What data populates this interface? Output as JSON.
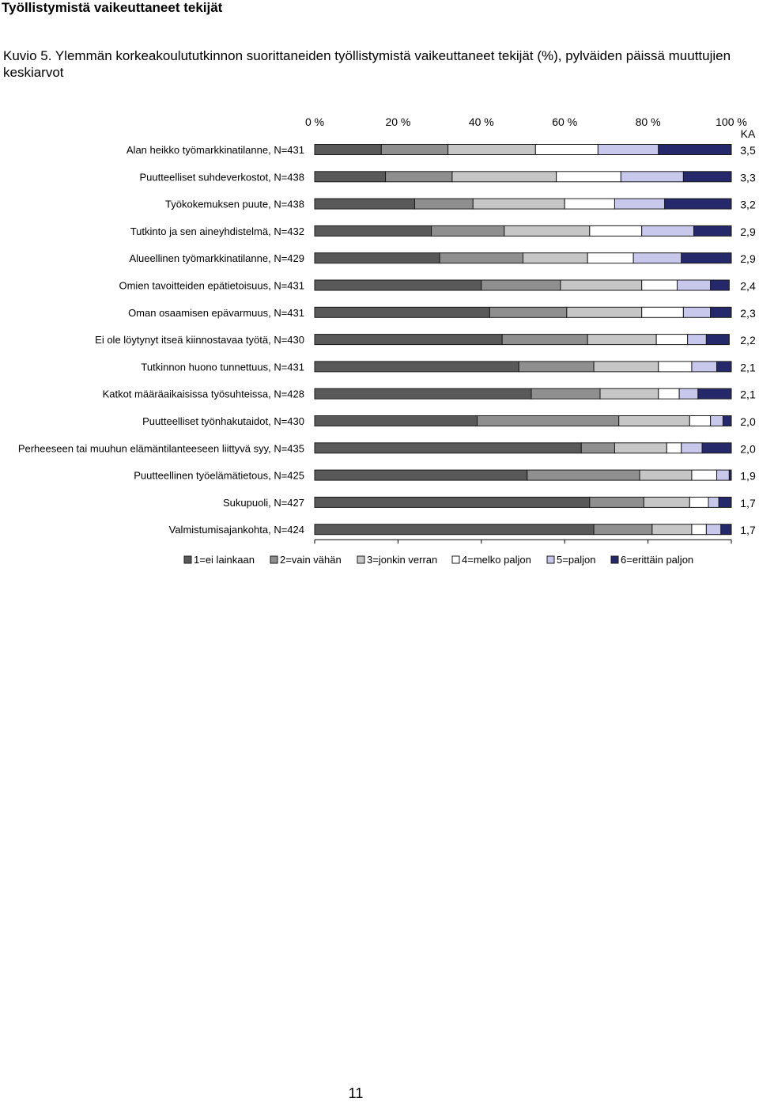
{
  "page": {
    "section_title": "Työllistymistä vaikeuttaneet tekijät",
    "caption": "Kuvio 5. Ylemmän korkeakoulututkinnon suorittaneiden työllistymistä vaikeuttaneet tekijät (%), pylväiden päissä muuttujien keskiarvot",
    "page_number": "11"
  },
  "chart_data": {
    "type": "bar",
    "orientation": "horizontal",
    "stacked": true,
    "x_ticks": [
      "0 %",
      "20 %",
      "40 %",
      "60 %",
      "80 %",
      "100 %"
    ],
    "xlim": [
      0,
      100
    ],
    "mean_header": "KA",
    "legend_position": "bottom",
    "grid": false,
    "categories": [
      "Alan heikko työmarkkinatilanne, N=431",
      "Puutteelliset suhdeverkostot, N=438",
      "Työkokemuksen puute, N=438",
      "Tutkinto ja sen aineyhdistelmä, N=432",
      "Alueellinen työmarkkinatilanne, N=429",
      "Omien tavoitteiden epätietoisuus, N=431",
      "Oman osaamisen epävarmuus, N=431",
      "Ei ole löytynyt itseä kiinnostavaa työtä, N=430",
      "Tutkinnon huono tunnettuus, N=431",
      "Katkot määräaikaisissa työsuhteissa, N=428",
      "Puutteelliset työnhakutaidot, N=430",
      "Perheeseen tai muuhun elämäntilanteeseen liittyvä syy, N=435",
      "Puutteellinen työelämätietous, N=425",
      "Sukupuoli, N=427",
      "Valmistumisajankohta, N=424"
    ],
    "means": [
      "3,5",
      "3,3",
      "3,2",
      "2,9",
      "2,9",
      "2,4",
      "2,3",
      "2,2",
      "2,1",
      "2,1",
      "2,0",
      "2,0",
      "1,9",
      "1,7",
      "1,7"
    ],
    "series": [
      {
        "name": "1=ei lainkaan",
        "color": "#595959",
        "values": [
          16,
          17,
          24,
          28,
          30,
          40,
          42,
          45,
          49,
          52,
          39,
          64,
          51,
          66,
          67
        ]
      },
      {
        "name": "2=vain vähän",
        "color": "#8f8f8f",
        "values": [
          16,
          16,
          14,
          17.5,
          20,
          19,
          18.5,
          20.5,
          18,
          16.5,
          34,
          8,
          27,
          13,
          14
        ]
      },
      {
        "name": "3=jonkin verran",
        "color": "#c6c6c6",
        "values": [
          21,
          25,
          22,
          20.5,
          15.5,
          19.5,
          18,
          16.5,
          15.5,
          14,
          17,
          12.5,
          12.5,
          11,
          9.5
        ]
      },
      {
        "name": "4=melko paljon",
        "color": "#ffffff",
        "values": [
          15,
          15.5,
          12,
          12.5,
          11,
          8.5,
          10,
          7.5,
          8,
          5,
          5,
          3.5,
          6,
          4.5,
          3.5
        ]
      },
      {
        "name": "5=paljon",
        "color": "#c8c8ec",
        "values": [
          14.5,
          15,
          12,
          12.5,
          11.5,
          8,
          6.5,
          4.5,
          6,
          4.5,
          3,
          5,
          3,
          2.5,
          3.5
        ]
      },
      {
        "name": "6=erittäin paljon",
        "color": "#25286b",
        "values": [
          17.5,
          11.5,
          16,
          9,
          12,
          4.5,
          5,
          5.5,
          3.5,
          8,
          2,
          7,
          0.5,
          3,
          2.5
        ]
      }
    ]
  }
}
